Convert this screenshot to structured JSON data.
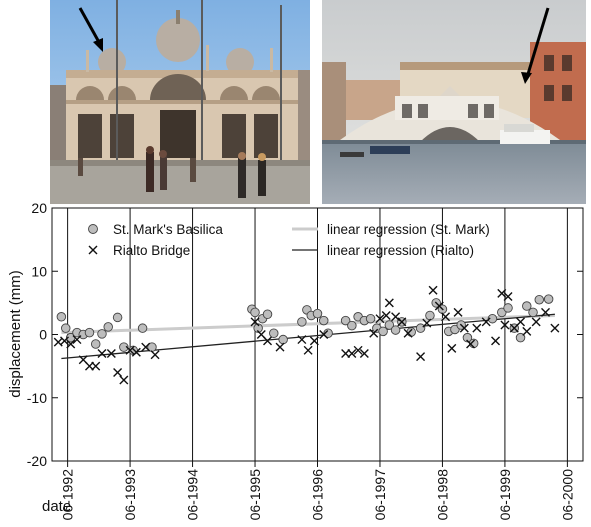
{
  "photos": [
    {
      "name": "St. Mark's Basilica photo",
      "arrow": "black"
    },
    {
      "name": "Rialto Bridge photo",
      "arrow": "black"
    }
  ],
  "chart_data": {
    "type": "scatter",
    "title": "",
    "xlabel": "date",
    "ylabel": "displacement (mm)",
    "ylim": [
      -20,
      20
    ],
    "yticks": [
      20,
      10,
      0,
      -10,
      -20
    ],
    "xlim": [
      1991.75,
      2000.25
    ],
    "xticks": [
      {
        "value": 1992,
        "label": "06-1992"
      },
      {
        "value": 1993,
        "label": "06-1993"
      },
      {
        "value": 1994,
        "label": "06-1994"
      },
      {
        "value": 1995,
        "label": "06-1995"
      },
      {
        "value": 1996,
        "label": "06-1996"
      },
      {
        "value": 1997,
        "label": "06-1997"
      },
      {
        "value": 1998,
        "label": "06-1998"
      },
      {
        "value": 1999,
        "label": "06-1999"
      },
      {
        "value": 2000,
        "label": "06-2000"
      }
    ],
    "grid": "vertical lines at each tick",
    "legend": {
      "placement": "top-left and top-center",
      "entries": [
        {
          "label": "St. Mark's Basilica",
          "marker": "circle"
        },
        {
          "label": "Rialto Bridge",
          "marker": "x"
        },
        {
          "label": "linear regression (St. Mark)",
          "marker": "line",
          "color": "#cccccc"
        },
        {
          "label": "linear regression (Rialto)",
          "marker": "line",
          "color": "#222222"
        }
      ]
    },
    "series": [
      {
        "name": "St. Mark's Basilica",
        "marker": "circle",
        "fill": "#bdbdbd",
        "points": [
          [
            1991.9,
            2.8
          ],
          [
            1991.97,
            1.0
          ],
          [
            1992.05,
            -0.5
          ],
          [
            1992.15,
            0.3
          ],
          [
            1992.25,
            0.0
          ],
          [
            1992.35,
            0.3
          ],
          [
            1992.45,
            -1.5
          ],
          [
            1992.55,
            0.1
          ],
          [
            1992.65,
            1.2
          ],
          [
            1992.8,
            2.7
          ],
          [
            1992.9,
            -2.0
          ],
          [
            1993.05,
            -2.5
          ],
          [
            1993.2,
            1.0
          ],
          [
            1993.35,
            -2.0
          ],
          [
            1994.95,
            4.0
          ],
          [
            1995.0,
            3.5
          ],
          [
            1995.05,
            1.0
          ],
          [
            1995.12,
            2.5
          ],
          [
            1995.2,
            3.2
          ],
          [
            1995.3,
            0.2
          ],
          [
            1995.45,
            -0.8
          ],
          [
            1995.75,
            2.0
          ],
          [
            1995.83,
            3.9
          ],
          [
            1995.9,
            3.0
          ],
          [
            1996.0,
            3.3
          ],
          [
            1996.1,
            2.2
          ],
          [
            1996.17,
            0.2
          ],
          [
            1996.45,
            2.2
          ],
          [
            1996.55,
            1.4
          ],
          [
            1996.65,
            2.8
          ],
          [
            1996.75,
            2.2
          ],
          [
            1996.85,
            2.5
          ],
          [
            1996.95,
            1.0
          ],
          [
            1997.05,
            0.5
          ],
          [
            1997.15,
            1.5
          ],
          [
            1997.25,
            0.7
          ],
          [
            1997.35,
            2.0
          ],
          [
            1997.5,
            0.4
          ],
          [
            1997.65,
            1.0
          ],
          [
            1997.8,
            3.0
          ],
          [
            1997.9,
            5.0
          ],
          [
            1998.0,
            4.0
          ],
          [
            1998.1,
            0.5
          ],
          [
            1998.2,
            0.8
          ],
          [
            1998.3,
            1.5
          ],
          [
            1998.4,
            -0.5
          ],
          [
            1998.5,
            -1.4
          ],
          [
            1998.8,
            2.5
          ],
          [
            1998.95,
            3.5
          ],
          [
            1999.05,
            4.2
          ],
          [
            1999.15,
            1.0
          ],
          [
            1999.25,
            -0.5
          ],
          [
            1999.35,
            4.5
          ],
          [
            1999.45,
            3.5
          ],
          [
            1999.55,
            5.5
          ],
          [
            1999.7,
            5.6
          ]
        ]
      },
      {
        "name": "Rialto Bridge",
        "marker": "x",
        "color": "#111111",
        "points": [
          [
            1991.85,
            -1.2
          ],
          [
            1991.95,
            -1.0
          ],
          [
            1992.05,
            -1.5
          ],
          [
            1992.15,
            -0.8
          ],
          [
            1992.25,
            -4.0
          ],
          [
            1992.35,
            -5.0
          ],
          [
            1992.45,
            -5.0
          ],
          [
            1992.55,
            -3.0
          ],
          [
            1992.7,
            -3.0
          ],
          [
            1992.8,
            -6.0
          ],
          [
            1992.9,
            -7.2
          ],
          [
            1993.0,
            -2.5
          ],
          [
            1993.1,
            -2.8
          ],
          [
            1993.25,
            -2.0
          ],
          [
            1993.4,
            -3.2
          ],
          [
            1995.0,
            2.0
          ],
          [
            1995.1,
            0.0
          ],
          [
            1995.2,
            -1.0
          ],
          [
            1995.4,
            -2.0
          ],
          [
            1995.75,
            -0.8
          ],
          [
            1995.85,
            -2.5
          ],
          [
            1995.95,
            -1.0
          ],
          [
            1996.1,
            0.0
          ],
          [
            1996.45,
            -3.0
          ],
          [
            1996.55,
            -3.0
          ],
          [
            1996.65,
            -2.5
          ],
          [
            1996.75,
            -3.0
          ],
          [
            1996.9,
            0.2
          ],
          [
            1997.0,
            2.5
          ],
          [
            1997.1,
            3.0
          ],
          [
            1997.15,
            5.0
          ],
          [
            1997.25,
            2.8
          ],
          [
            1997.35,
            2.0
          ],
          [
            1997.45,
            0.2
          ],
          [
            1997.65,
            -3.5
          ],
          [
            1997.75,
            1.8
          ],
          [
            1997.85,
            7.0
          ],
          [
            1997.95,
            4.5
          ],
          [
            1998.05,
            2.8
          ],
          [
            1998.15,
            -2.2
          ],
          [
            1998.25,
            3.5
          ],
          [
            1998.35,
            1.0
          ],
          [
            1998.45,
            -1.5
          ],
          [
            1998.55,
            1.0
          ],
          [
            1998.7,
            2.0
          ],
          [
            1998.85,
            -1.0
          ],
          [
            1998.95,
            6.5
          ],
          [
            1999.0,
            1.5
          ],
          [
            1999.05,
            6.0
          ],
          [
            1999.15,
            1.0
          ],
          [
            1999.25,
            2.0
          ],
          [
            1999.35,
            0.5
          ],
          [
            1999.5,
            2.0
          ],
          [
            1999.65,
            3.5
          ],
          [
            1999.8,
            1.0
          ]
        ]
      }
    ],
    "regressions": [
      {
        "name": "linear regression (St. Mark)",
        "color": "#cccccc",
        "from": [
          1991.9,
          0.3
        ],
        "to": [
          1999.8,
          3.0
        ]
      },
      {
        "name": "linear regression (Rialto)",
        "color": "#222222",
        "from": [
          1991.9,
          -3.8
        ],
        "to": [
          1999.8,
          3.2
        ]
      }
    ]
  }
}
